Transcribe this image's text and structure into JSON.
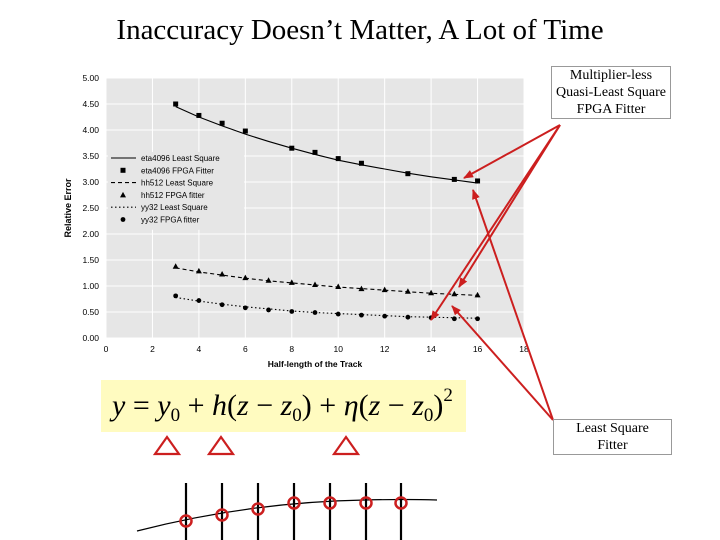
{
  "slide": {
    "title": "Inaccuracy Doesn’t Matter, A Lot of Time",
    "callout_top": [
      "Multiplier-less",
      "Quasi-Least Square",
      "FPGA Fitter"
    ],
    "callout_bottom": [
      "Least Square",
      "Fitter"
    ],
    "equation": {
      "lhs": "y",
      "eq": "=",
      "y0": "y",
      "sub0": "0",
      "plus1": "+",
      "h": "h",
      "paren1": "(",
      "z1": "z",
      "minus1": "−",
      "z0a": "z",
      "sub1": "0",
      "close1": ")",
      "plus2": "+",
      "eta": "η",
      "paren2": "(",
      "z2": "z",
      "minus2": "−",
      "z0b": "z",
      "sub2": "0",
      "close2": ")",
      "pow": "2"
    },
    "colors": {
      "arrow": "#cc1f1f",
      "equation_bg": "#fffbc0",
      "plot_bg": "#e6e6e6",
      "gridline": "#ffffff",
      "marker": "#cc1f1f"
    }
  },
  "chart_data": {
    "type": "line",
    "xlabel": "Half-length of the Track",
    "ylabel": "Relative Error",
    "xlim": [
      0,
      18
    ],
    "ylim": [
      0,
      5
    ],
    "xticks": [
      "0",
      "2",
      "4",
      "6",
      "8",
      "10",
      "12",
      "14",
      "16",
      "18"
    ],
    "yticks": [
      "0.00",
      "0.50",
      "1.00",
      "1.50",
      "2.00",
      "2.50",
      "3.00",
      "3.50",
      "4.00",
      "4.50",
      "5.00"
    ],
    "grid": true,
    "legend_position": "left-middle",
    "series": [
      {
        "name": "eta4096 Least Square",
        "style": "solid",
        "marker": "none",
        "x": [
          3,
          4,
          5,
          6,
          7,
          8,
          9,
          10,
          11,
          12,
          13,
          14,
          15,
          16
        ],
        "values": [
          4.45,
          4.25,
          4.08,
          3.92,
          3.78,
          3.65,
          3.53,
          3.42,
          3.33,
          3.25,
          3.17,
          3.1,
          3.04,
          2.98
        ]
      },
      {
        "name": "eta4096 FPGA Fitter",
        "style": "none",
        "marker": "square",
        "x": [
          3,
          4,
          5,
          6,
          8,
          9,
          10,
          11,
          13,
          15,
          16
        ],
        "values": [
          4.5,
          4.28,
          4.13,
          3.98,
          3.65,
          3.57,
          3.45,
          3.36,
          3.16,
          3.05,
          3.02
        ]
      },
      {
        "name": "hh512 Least Square",
        "style": "dashed",
        "marker": "none",
        "x": [
          3,
          4,
          5,
          6,
          7,
          8,
          9,
          10,
          11,
          12,
          13,
          14,
          15,
          16
        ],
        "values": [
          1.35,
          1.27,
          1.21,
          1.15,
          1.1,
          1.06,
          1.02,
          0.98,
          0.95,
          0.92,
          0.89,
          0.86,
          0.84,
          0.82
        ]
      },
      {
        "name": "hh512 FPGA fitter",
        "style": "none",
        "marker": "triangle",
        "x": [
          3,
          4,
          5,
          6,
          7,
          8,
          9,
          10,
          11,
          12,
          13,
          14,
          15,
          16
        ],
        "values": [
          1.38,
          1.29,
          1.23,
          1.16,
          1.11,
          1.07,
          1.03,
          0.99,
          0.95,
          0.93,
          0.9,
          0.87,
          0.85,
          0.83
        ]
      },
      {
        "name": "yy32 Least Square",
        "style": "dotted",
        "marker": "none",
        "x": [
          3,
          4,
          5,
          6,
          7,
          8,
          9,
          10,
          11,
          12,
          13,
          14,
          15,
          16
        ],
        "values": [
          0.78,
          0.71,
          0.65,
          0.6,
          0.56,
          0.52,
          0.49,
          0.47,
          0.45,
          0.43,
          0.41,
          0.4,
          0.39,
          0.38
        ]
      },
      {
        "name": "yy32 FPGA fitter",
        "style": "none",
        "marker": "circle",
        "x": [
          3,
          4,
          5,
          6,
          7,
          8,
          9,
          10,
          11,
          12,
          13,
          14,
          15,
          16
        ],
        "values": [
          0.81,
          0.72,
          0.64,
          0.58,
          0.54,
          0.51,
          0.49,
          0.46,
          0.44,
          0.42,
          0.4,
          0.39,
          0.37,
          0.37
        ]
      }
    ]
  }
}
